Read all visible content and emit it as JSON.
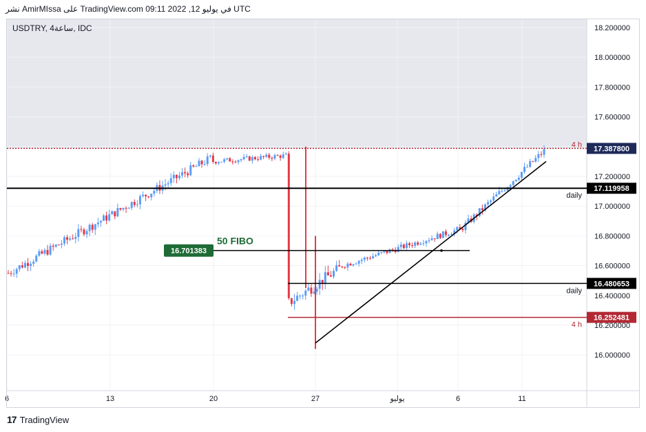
{
  "header": {
    "published": "نشر AmirMIssa على TradingView.com 09:11 2022 ,12 في يوليو UTC",
    "symbol": "USDTRY, 4ساعة, IDC"
  },
  "footer": {
    "brand": "TradingView",
    "logo_glyph": "17"
  },
  "colors": {
    "bull": "#5b9cf6",
    "bear": "#e53946",
    "line": "#000000",
    "red_level": "#b22833",
    "fibo": "#1e6b35",
    "bg_shade": "#e6e8ee"
  },
  "chart_data": {
    "type": "candlestick",
    "y_range": [
      15.76,
      18.26
    ],
    "y_ticks": [
      "18.200000",
      "18.000000",
      "17.800000",
      "17.600000",
      "17.400000",
      "17.200000",
      "17.000000",
      "16.800000",
      "16.600000",
      "16.400000",
      "16.200000",
      "16.000000"
    ],
    "y_tick_values": [
      18.2,
      18.0,
      17.8,
      17.6,
      17.4,
      17.2,
      17.0,
      16.8,
      16.6,
      16.4,
      16.2,
      16.0
    ],
    "x_ticks": [
      "6",
      "13",
      "20",
      "27",
      "يوليو",
      "6",
      "11"
    ],
    "levels": [
      {
        "value": 17.3878,
        "label": "17.387800",
        "tag": "4 h",
        "style": "red-dotted"
      },
      {
        "value": 17.119958,
        "label": "17.119958",
        "tag": "daily",
        "style": "black"
      },
      {
        "value": 16.701383,
        "label": "16.701383",
        "tag": "50 FIBO",
        "style": "fibo"
      },
      {
        "value": 16.480653,
        "label": "16.480653",
        "tag": "daily",
        "style": "black"
      },
      {
        "value": 16.252481,
        "label": "16.252481",
        "tag": "4 h",
        "style": "red"
      }
    ],
    "trendline": {
      "from": [
        27,
        16.08
      ],
      "to": [
        33.5,
        17.3
      ]
    },
    "segments": [
      {
        "i0": 0,
        "i1": 72,
        "v0": 16.55,
        "v1": 17.32,
        "vol": 0.06
      },
      {
        "i0": 73,
        "i1": 99,
        "v0": 17.3,
        "v1": 17.34,
        "vol": 0.035
      },
      {
        "i0": 100,
        "i1": 118,
        "v0": 16.35,
        "v1": 16.58,
        "vol": 0.08
      },
      {
        "i0": 119,
        "i1": 160,
        "v0": 16.6,
        "v1": 16.84,
        "vol": 0.04
      },
      {
        "i0": 161,
        "i1": 191,
        "v0": 16.84,
        "v1": 17.37,
        "vol": 0.05
      }
    ]
  }
}
